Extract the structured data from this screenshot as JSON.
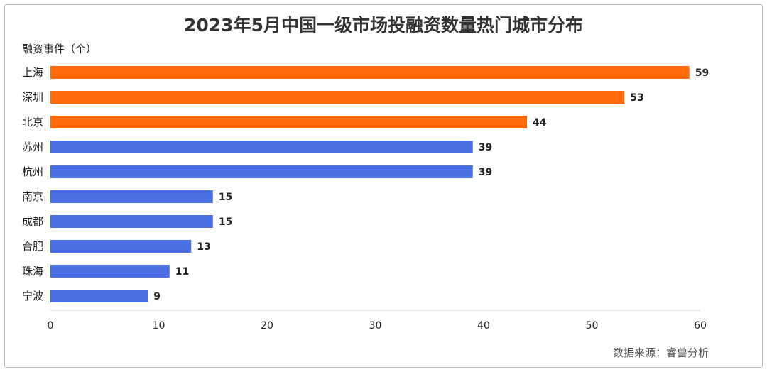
{
  "chart_data": {
    "type": "bar",
    "orientation": "horizontal",
    "title": "2023年5月中国一级市场投融资数量热门城市分布",
    "ylabel": "融资事件（个）",
    "source": "数据来源：睿兽分析",
    "categories": [
      "上海",
      "深圳",
      "北京",
      "苏州",
      "杭州",
      "南京",
      "成都",
      "合肥",
      "珠海",
      "宁波"
    ],
    "values": [
      59,
      53,
      44,
      39,
      39,
      15,
      15,
      13,
      11,
      9
    ],
    "bar_colors": [
      "#ff6a0d",
      "#ff6a0d",
      "#ff6a0d",
      "#4a6fe0",
      "#4a6fe0",
      "#4a6fe0",
      "#4a6fe0",
      "#4a6fe0",
      "#4a6fe0",
      "#4a6fe0"
    ],
    "xlim": [
      0,
      60
    ],
    "xticks": [
      0,
      10,
      20,
      30,
      40,
      50,
      60
    ],
    "grid": false
  }
}
